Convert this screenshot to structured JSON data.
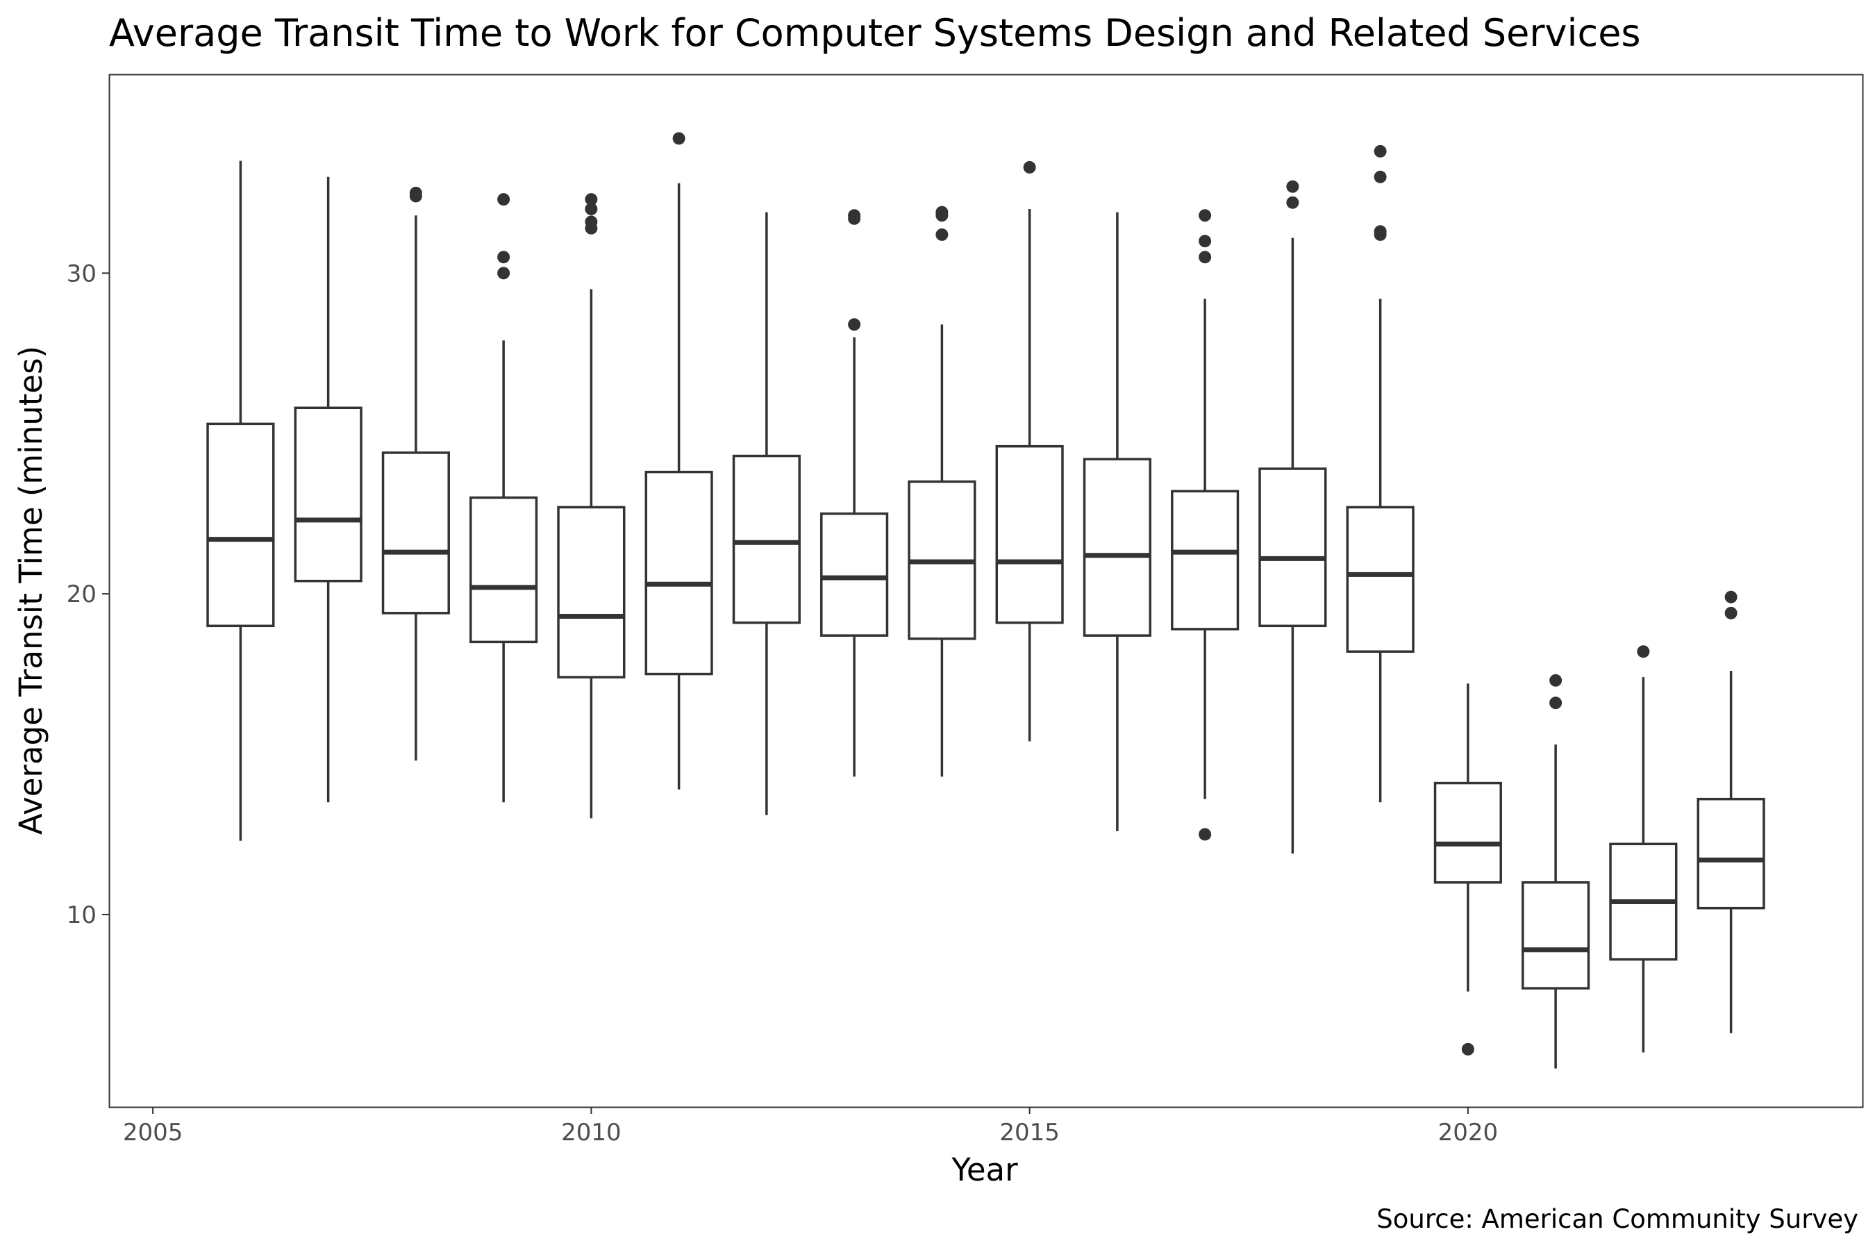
{
  "chart_data": {
    "type": "boxplot",
    "title": "Average Transit Time to Work for Computer Systems Design and Related Services",
    "xlabel": "Year",
    "ylabel": "Average Transit Time (minutes)",
    "caption": "Source: American Community Survey",
    "xlim": [
      2004.5,
      2024.5
    ],
    "ylim": [
      4.0,
      36.2
    ],
    "x_ticks": [
      2005,
      2010,
      2015,
      2020
    ],
    "y_ticks": [
      10,
      20,
      30
    ],
    "grid": false,
    "colors": {
      "stroke": "#333333",
      "panel_border": "#333333",
      "background": "#ffffff"
    },
    "boxes": [
      {
        "year": 2006,
        "whisker_low": 12.3,
        "q1": 19.0,
        "median": 21.7,
        "q3": 25.3,
        "whisker_high": 33.5,
        "outliers": []
      },
      {
        "year": 2007,
        "whisker_low": 13.5,
        "q1": 20.4,
        "median": 22.3,
        "q3": 25.8,
        "whisker_high": 33.0,
        "outliers": []
      },
      {
        "year": 2008,
        "whisker_low": 14.8,
        "q1": 19.4,
        "median": 21.3,
        "q3": 24.4,
        "whisker_high": 31.8,
        "outliers": [
          32.4,
          32.5
        ]
      },
      {
        "year": 2009,
        "whisker_low": 13.5,
        "q1": 18.5,
        "median": 20.2,
        "q3": 23.0,
        "whisker_high": 27.9,
        "outliers": [
          30.0,
          30.5,
          32.3
        ]
      },
      {
        "year": 2010,
        "whisker_low": 13.0,
        "q1": 17.4,
        "median": 19.3,
        "q3": 22.7,
        "whisker_high": 29.5,
        "outliers": [
          31.4,
          31.6,
          32.0,
          32.3
        ]
      },
      {
        "year": 2011,
        "whisker_low": 13.9,
        "q1": 17.5,
        "median": 20.3,
        "q3": 23.8,
        "whisker_high": 32.8,
        "outliers": [
          34.2
        ]
      },
      {
        "year": 2012,
        "whisker_low": 13.1,
        "q1": 19.1,
        "median": 21.6,
        "q3": 24.3,
        "whisker_high": 31.9,
        "outliers": []
      },
      {
        "year": 2013,
        "whisker_low": 14.3,
        "q1": 18.7,
        "median": 20.5,
        "q3": 22.5,
        "whisker_high": 28.0,
        "outliers": [
          28.4,
          31.7,
          31.8
        ]
      },
      {
        "year": 2014,
        "whisker_low": 14.3,
        "q1": 18.6,
        "median": 21.0,
        "q3": 23.5,
        "whisker_high": 28.4,
        "outliers": [
          31.2,
          31.8,
          31.9
        ]
      },
      {
        "year": 2015,
        "whisker_low": 15.4,
        "q1": 19.1,
        "median": 21.0,
        "q3": 24.6,
        "whisker_high": 32.0,
        "outliers": [
          33.3
        ]
      },
      {
        "year": 2016,
        "whisker_low": 12.6,
        "q1": 18.7,
        "median": 21.2,
        "q3": 24.2,
        "whisker_high": 31.9,
        "outliers": []
      },
      {
        "year": 2017,
        "whisker_low": 13.6,
        "q1": 18.9,
        "median": 21.3,
        "q3": 23.2,
        "whisker_high": 29.2,
        "outliers": [
          12.5,
          30.5,
          31.0,
          31.8
        ]
      },
      {
        "year": 2018,
        "whisker_low": 11.9,
        "q1": 19.0,
        "median": 21.1,
        "q3": 23.9,
        "whisker_high": 31.1,
        "outliers": [
          32.2,
          32.7
        ]
      },
      {
        "year": 2019,
        "whisker_low": 13.5,
        "q1": 18.2,
        "median": 20.6,
        "q3": 22.7,
        "whisker_high": 29.2,
        "outliers": [
          31.2,
          31.3,
          33.0,
          33.8
        ]
      },
      {
        "year": 2020,
        "whisker_low": 7.6,
        "q1": 11.0,
        "median": 12.2,
        "q3": 14.1,
        "whisker_high": 17.2,
        "outliers": [
          5.8
        ]
      },
      {
        "year": 2021,
        "whisker_low": 5.2,
        "q1": 7.7,
        "median": 8.9,
        "q3": 11.0,
        "whisker_high": 15.3,
        "outliers": [
          16.6,
          17.3
        ]
      },
      {
        "year": 2022,
        "whisker_low": 5.7,
        "q1": 8.6,
        "median": 10.4,
        "q3": 12.2,
        "whisker_high": 17.4,
        "outliers": [
          18.2
        ]
      },
      {
        "year": 2023,
        "whisker_low": 6.3,
        "q1": 10.2,
        "median": 11.7,
        "q3": 13.6,
        "whisker_high": 17.6,
        "outliers": [
          19.4,
          19.9
        ]
      }
    ]
  }
}
